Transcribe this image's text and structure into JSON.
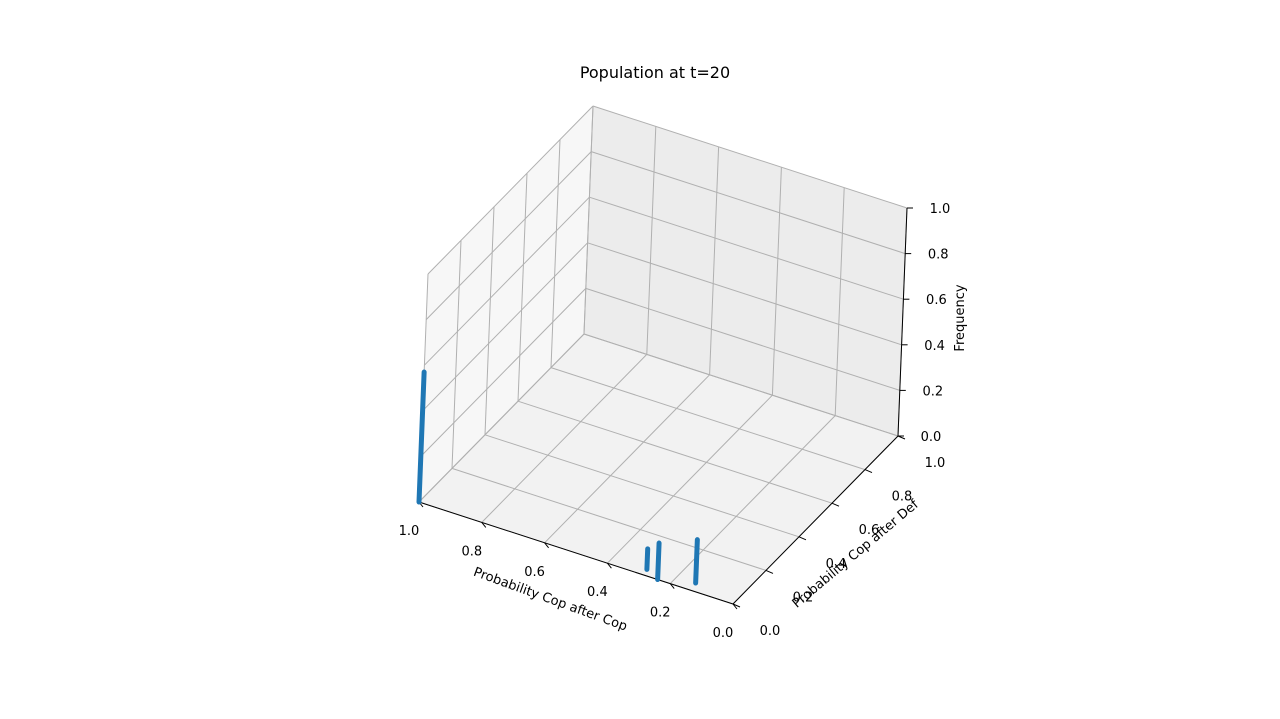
{
  "chart_data": {
    "type": "bar3d",
    "title": "Population at t=20",
    "xlabel": "Probability Cop after Cop",
    "ylabel": "Probability Cop after Def",
    "zlabel": "Frequency",
    "xlim": [
      0,
      1
    ],
    "ylim": [
      0,
      1
    ],
    "zlim": [
      0,
      1
    ],
    "x_ticks": [
      "0.0",
      "0.2",
      "0.4",
      "0.6",
      "0.8",
      "1.0"
    ],
    "y_ticks": [
      "0.0",
      "0.2",
      "0.4",
      "0.6",
      "0.8",
      "1.0"
    ],
    "z_ticks": [
      "0.0",
      "0.2",
      "0.4",
      "0.6",
      "0.8",
      "1.0"
    ],
    "grid": true,
    "series_color": "#1f77b4",
    "points": [
      {
        "x": 1.0,
        "y": 0.0,
        "z": 0.57
      },
      {
        "x": 0.29,
        "y": 0.03,
        "z": 0.09
      },
      {
        "x": 0.24,
        "y": 0.0,
        "z": 0.16
      },
      {
        "x": 0.14,
        "y": 0.04,
        "z": 0.19
      }
    ]
  }
}
